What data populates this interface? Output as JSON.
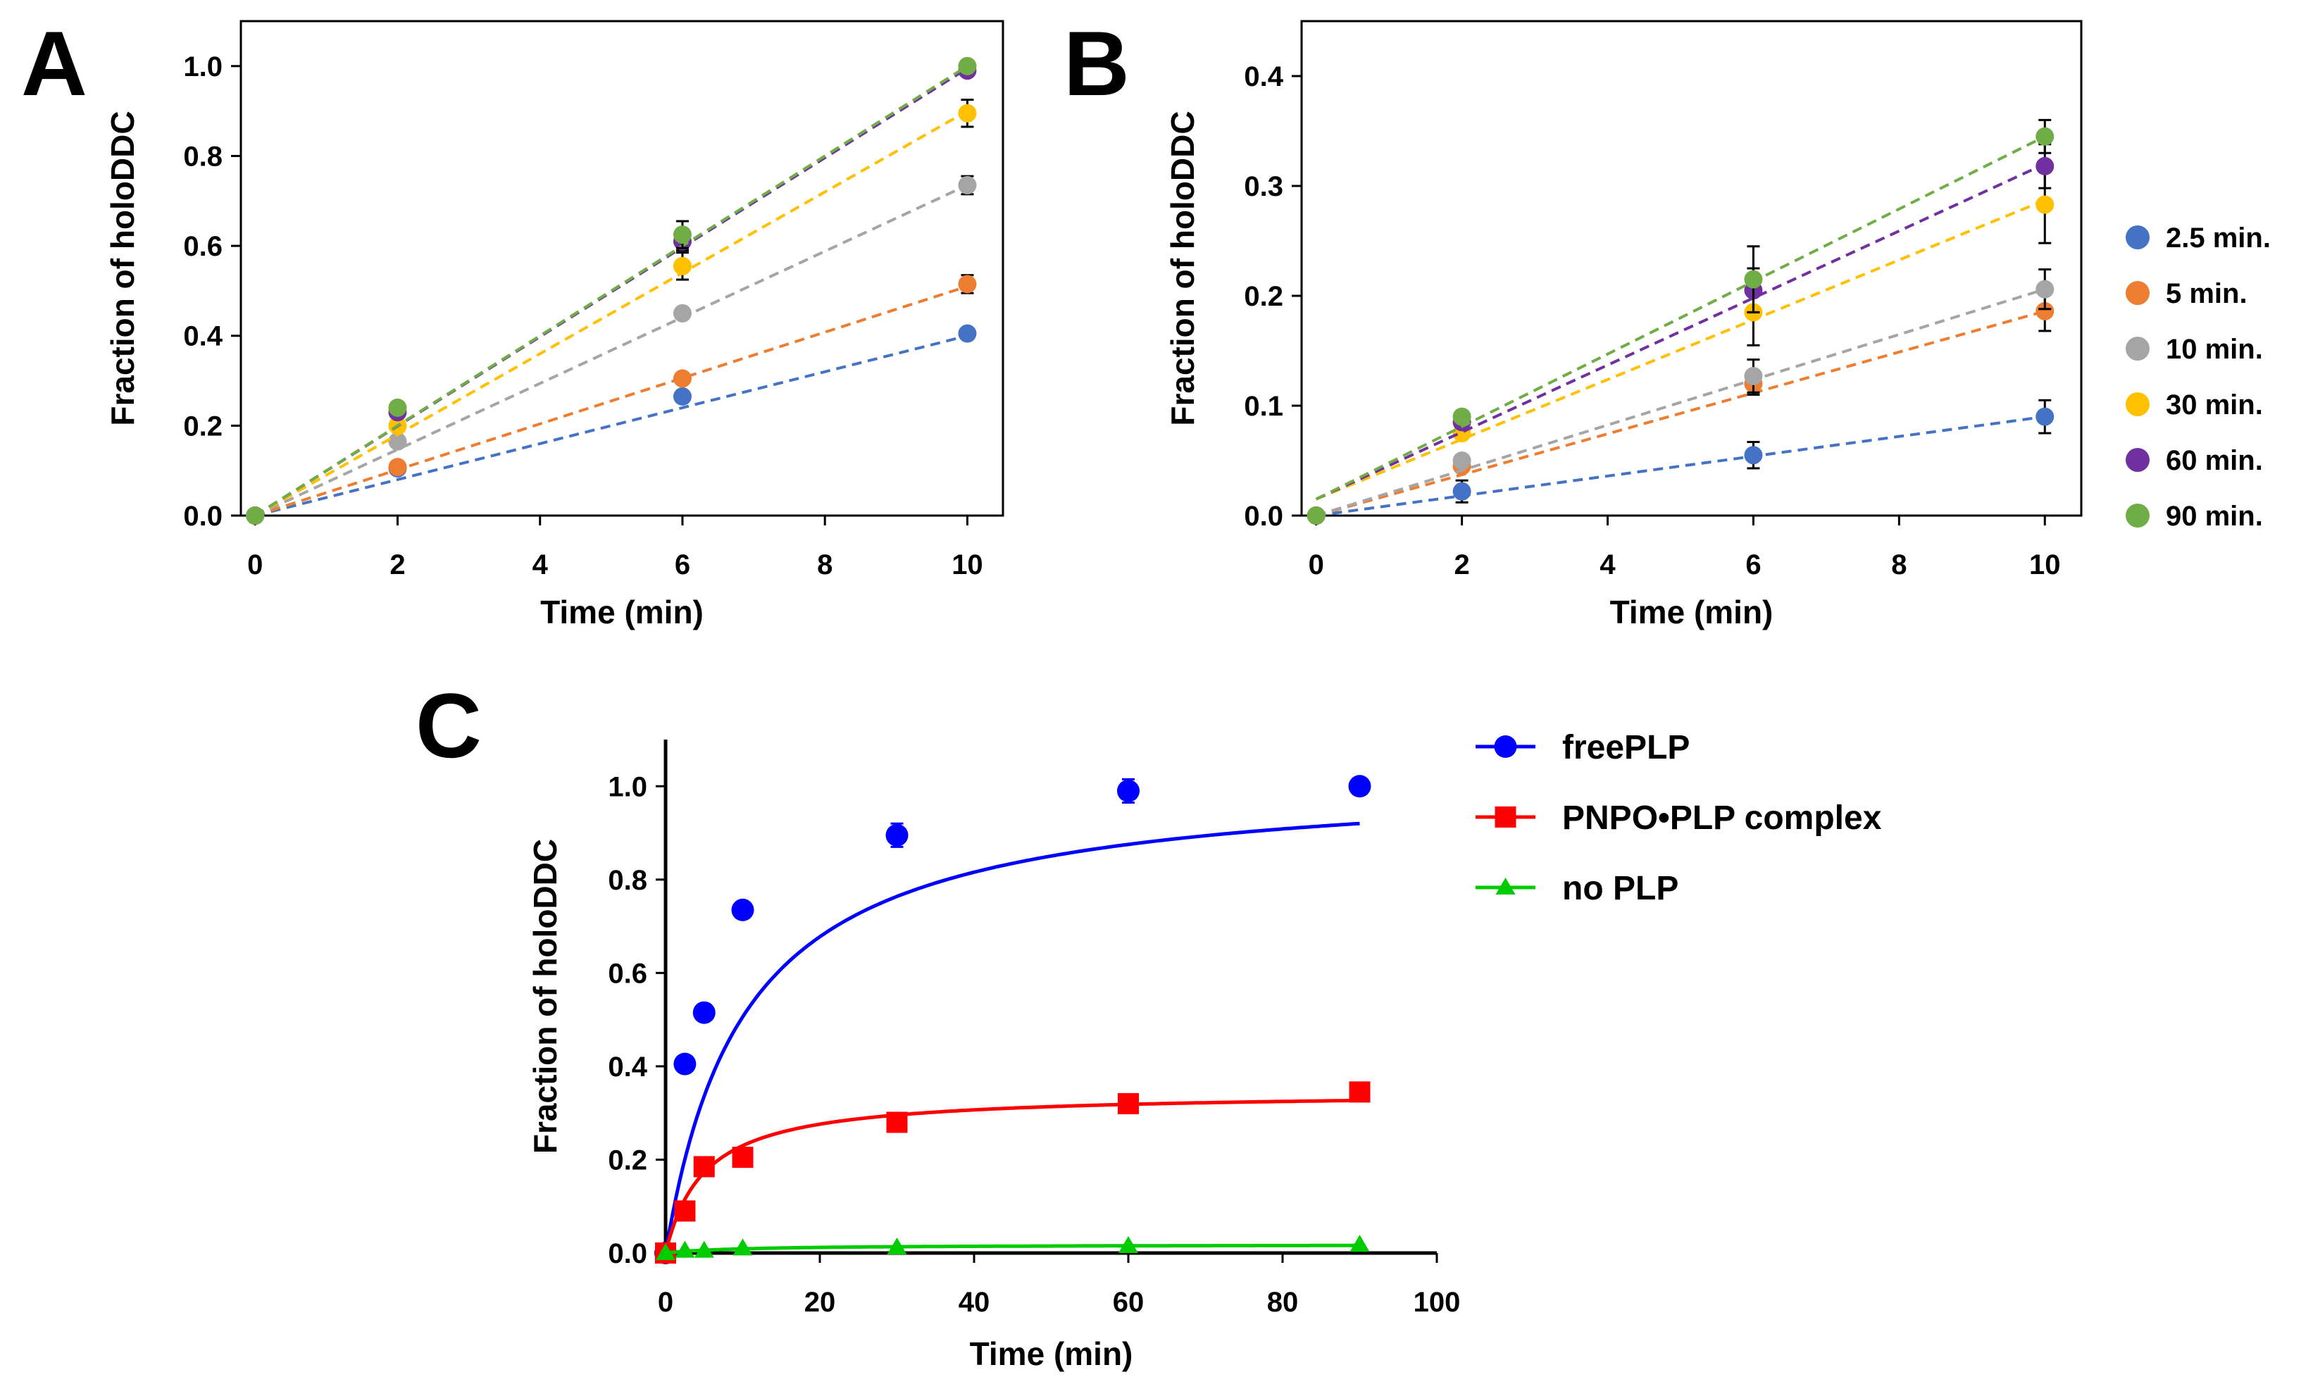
{
  "chart_data": [
    {
      "id": "A",
      "panel_label": "A",
      "type": "scatter",
      "xlabel": "Time (min)",
      "ylabel": "Fraction of holoDDC",
      "xlim": [
        -0.2,
        10.5
      ],
      "ylim": [
        0,
        1.1
      ],
      "xticks": [
        "0",
        "2",
        "4",
        "6",
        "8",
        "10"
      ],
      "yticks": [
        "0.0",
        "0.2",
        "0.4",
        "0.6",
        "0.8",
        "1.0"
      ],
      "x": [
        0,
        2,
        6,
        10
      ],
      "series": [
        {
          "name": "2.5 min.",
          "color": "#4472C4",
          "values": [
            0.0,
            0.105,
            0.265,
            0.405
          ],
          "err": [
            0,
            0,
            0.01,
            0.01
          ],
          "fit": [
            0.0,
            0.04
          ]
        },
        {
          "name": "5 min.",
          "color": "#ED7D31",
          "values": [
            0.0,
            0.108,
            0.305,
            0.515
          ],
          "err": [
            0,
            0,
            0.01,
            0.02
          ],
          "fit": [
            0.0,
            0.051
          ]
        },
        {
          "name": "10 min.",
          "color": "#A5A5A5",
          "values": [
            0.0,
            0.165,
            0.45,
            0.735
          ],
          "err": [
            0,
            0,
            0.01,
            0.02
          ],
          "fit": [
            0.0,
            0.0735
          ]
        },
        {
          "name": "30 min.",
          "color": "#FFC000",
          "values": [
            0.0,
            0.2,
            0.555,
            0.895
          ],
          "err": [
            0,
            0,
            0.03,
            0.03
          ],
          "fit": [
            0.0,
            0.09
          ]
        },
        {
          "name": "60 min.",
          "color": "#7030A0",
          "values": [
            0.0,
            0.23,
            0.61,
            0.99
          ],
          "err": [
            0,
            0,
            0.02,
            0.01
          ],
          "fit": [
            0.0,
            0.0995
          ]
        },
        {
          "name": "90 min.",
          "color": "#70AD47",
          "values": [
            0.0,
            0.24,
            0.625,
            1.0
          ],
          "err": [
            0,
            0,
            0.03,
            0.0
          ],
          "fit": [
            0.0,
            0.1
          ]
        }
      ]
    },
    {
      "id": "B",
      "panel_label": "B",
      "type": "scatter",
      "xlabel": "Time (min)",
      "ylabel": "Fraction of holoDDC",
      "xlim": [
        -0.2,
        10.5
      ],
      "ylim": [
        0,
        0.45
      ],
      "xticks": [
        "0",
        "2",
        "4",
        "6",
        "8",
        "10"
      ],
      "yticks": [
        "0.0",
        "0.1",
        "0.2",
        "0.3",
        "0.4"
      ],
      "x": [
        0,
        2,
        6,
        10
      ],
      "legend_position": "right",
      "series": [
        {
          "name": "2.5 min.",
          "color": "#4472C4",
          "values": [
            0.0,
            0.022,
            0.055,
            0.09
          ],
          "err": [
            0,
            0.01,
            0.012,
            0.015
          ],
          "fit": [
            0.0,
            0.009
          ]
        },
        {
          "name": "5 min.",
          "color": "#ED7D31",
          "values": [
            0.0,
            0.045,
            0.12,
            0.186
          ],
          "err": [
            0,
            0,
            0.01,
            0.018
          ],
          "fit": [
            0.0,
            0.0186
          ]
        },
        {
          "name": "10 min.",
          "color": "#A5A5A5",
          "values": [
            0.0,
            0.05,
            0.127,
            0.206
          ],
          "err": [
            0,
            0,
            0.015,
            0.018
          ],
          "fit": [
            0.0,
            0.0206
          ]
        },
        {
          "name": "30 min.",
          "color": "#FFC000",
          "values": [
            0.0,
            0.075,
            0.185,
            0.283
          ],
          "err": [
            0,
            0,
            0.03,
            0.035
          ],
          "fit": [
            0.015,
            0.0272
          ]
        },
        {
          "name": "60 min.",
          "color": "#7030A0",
          "values": [
            0.0,
            0.085,
            0.205,
            0.318
          ],
          "err": [
            0,
            0,
            0.02,
            0.02
          ],
          "fit": [
            0.015,
            0.0305
          ]
        },
        {
          "name": "90 min.",
          "color": "#70AD47",
          "values": [
            0.0,
            0.09,
            0.215,
            0.345
          ],
          "err": [
            0,
            0.005,
            0.03,
            0.015
          ],
          "fit": [
            0.015,
            0.033
          ]
        }
      ]
    },
    {
      "id": "C",
      "panel_label": "C",
      "type": "line",
      "xlabel": "Time (min)",
      "ylabel": "Fraction of holoDDC",
      "xlim": [
        0,
        100
      ],
      "ylim": [
        0,
        1.1
      ],
      "xticks": [
        "0",
        "20",
        "40",
        "60",
        "80",
        "100"
      ],
      "yticks": [
        "0.0",
        "0.2",
        "0.4",
        "0.6",
        "0.8",
        "1.0"
      ],
      "x": [
        0,
        2.5,
        5,
        10,
        30,
        60,
        90
      ],
      "legend_position": "top-right outside",
      "series": [
        {
          "name": "freePLP",
          "color": "#0000FF",
          "marker": "circle",
          "values": [
            0.0,
            0.405,
            0.515,
            0.735,
            0.895,
            0.99,
            1.0
          ],
          "err": [
            0,
            0,
            0,
            0,
            0.025,
            0.025,
            0
          ],
          "fit_max": 1.025,
          "fit_k": 0.0065
        },
        {
          "name": "PNPO•PLP complex",
          "color": "#FF0000",
          "marker": "square",
          "values": [
            0.0,
            0.09,
            0.185,
            0.205,
            0.28,
            0.32,
            0.345
          ],
          "err": [
            0,
            0,
            0,
            0,
            0,
            0,
            0.02
          ],
          "fit_max": 0.345,
          "fit_k": 0.2
        },
        {
          "name": "no PLP",
          "color": "#00CC00",
          "marker": "triangle",
          "values": [
            0.0,
            0.005,
            0.005,
            0.01,
            0.012,
            0.015,
            0.018
          ],
          "err": [
            0,
            0,
            0,
            0,
            0,
            0,
            0
          ],
          "fit_max": 0.018,
          "fit_k": 0.1
        }
      ]
    }
  ]
}
